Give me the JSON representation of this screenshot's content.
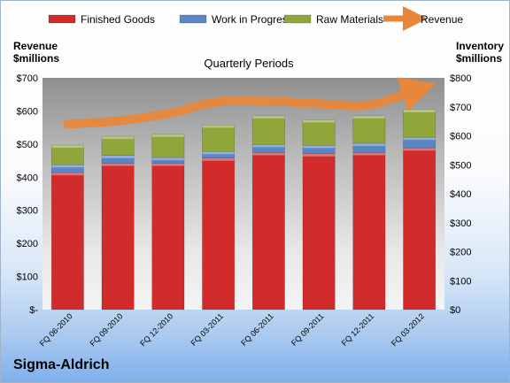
{
  "chart_data": {
    "type": "bar",
    "subtitle": "Quarterly Periods",
    "left_axis": {
      "title_lines": [
        "Revenue",
        "$millions"
      ],
      "ticks": [
        "$-",
        "$100",
        "$200",
        "$300",
        "$400",
        "$500",
        "$600",
        "$700"
      ],
      "range": [
        0,
        700
      ]
    },
    "right_axis": {
      "title_lines": [
        "Inventory",
        "$millions"
      ],
      "ticks": [
        "$0",
        "$100",
        "$200",
        "$300",
        "$400",
        "$500",
        "$600",
        "$700",
        "$800"
      ],
      "range": [
        0,
        800
      ]
    },
    "categories": [
      "FQ 06-2010",
      "FQ 09-2010",
      "FQ 12-2010",
      "FQ 03-2011",
      "FQ 06-2011",
      "FQ 09-2011",
      "FQ 12-2011",
      "FQ 03-2012"
    ],
    "series": [
      {
        "name": "Finished Goods",
        "kind": "stacked-bar",
        "axis": "right",
        "color": "#d12b2b",
        "values": [
          473,
          505,
          505,
          523,
          542,
          538,
          542,
          558
        ]
      },
      {
        "name": "Work in Progress",
        "kind": "stacked-bar",
        "axis": "right",
        "color": "#5b86c6",
        "values": [
          27,
          27,
          20,
          23,
          28,
          29,
          32,
          37
        ]
      },
      {
        "name": "Raw Materials",
        "kind": "stacked-bar",
        "axis": "right",
        "color": "#8fa63b",
        "values": [
          68,
          66,
          80,
          91,
          99,
          88,
          95,
          95
        ]
      },
      {
        "name": "Revenue",
        "kind": "line",
        "axis": "left",
        "color": "#e8873a",
        "values": [
          560,
          570,
          592,
          628,
          630,
          622,
          618,
          667
        ]
      }
    ],
    "legend_position": "top",
    "grid": false
  },
  "brand": "Sigma-Aldrich"
}
